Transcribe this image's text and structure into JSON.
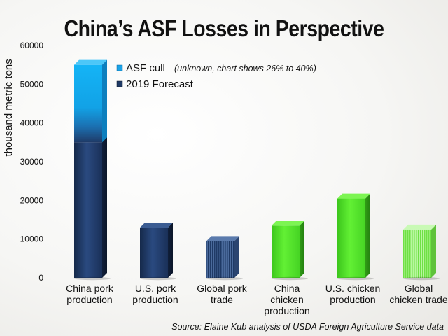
{
  "chart_data": {
    "type": "bar",
    "title": "China’s ASF Losses in Perspective",
    "ylabel": "thousand metric tons",
    "ylim": [
      0,
      60000
    ],
    "yticks": [
      0,
      10000,
      20000,
      30000,
      40000,
      50000,
      60000
    ],
    "categories": [
      [
        "China pork",
        "production"
      ],
      [
        "U.S. pork",
        "production"
      ],
      [
        "Global pork",
        "trade"
      ],
      [
        "China",
        "chicken",
        "production"
      ],
      [
        "U.S. chicken",
        "production"
      ],
      [
        "Global",
        "chicken trade"
      ]
    ],
    "series": [
      {
        "name": "2019 Forecast",
        "values": [
          35000,
          13000,
          9500,
          13500,
          20500,
          12500
        ]
      },
      {
        "name": "ASF cull",
        "values": [
          20000,
          0,
          0,
          0,
          0,
          0
        ]
      }
    ],
    "legend": {
      "position": "top-center",
      "items": [
        {
          "label": "ASF cull",
          "note": "(unknown, chart shows 26% to 40%)",
          "color": "#1aa3e8"
        },
        {
          "label": "2019 Forecast",
          "note": "",
          "color": "#1f3a66"
        }
      ]
    },
    "bar_styles": [
      "navy",
      "navy",
      "navy-hatched",
      "green",
      "green",
      "green-hatched"
    ],
    "colors": {
      "navy": "#1f3a66",
      "cyan": "#12aef0",
      "green": "#52e02a",
      "light_green": "#8ff06a"
    },
    "source": "Source: Elaine Kub analysis of USDA Foreign Agriculture Service data"
  }
}
